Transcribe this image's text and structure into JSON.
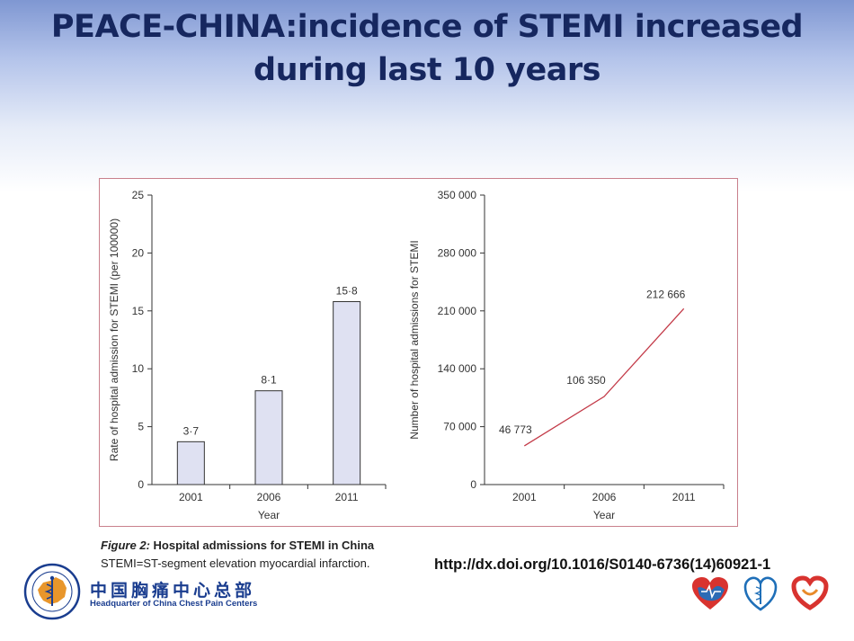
{
  "slide": {
    "title_line1": "PEACE-CHINA:incidence of STEMI increased",
    "title_line2": "during last 10 years"
  },
  "caption": {
    "figure_number": "Figure 2:",
    "figure_title": "Hospital admissions for STEMI in China",
    "footnote": "STEMI=ST-segment elevation myocardial infarction."
  },
  "doi_link": "http://dx.doi.org/10.1016/S0140-6736(14)60921-1",
  "footer": {
    "org_name_cn": "中国胸痛中心总部",
    "org_name_en": "Headquarter of China Chest Pain Centers"
  },
  "colors": {
    "title": "#16275f",
    "bar_fill": "#dfe1f2",
    "line": "#c33a48",
    "frame": "#c9808c",
    "org_blue": "#1a3d8f"
  },
  "icons": [
    "hq-emblem-icon",
    "heart-alliance-logo-icon",
    "chest-pain-logo-icon",
    "heart-foundation-logo-icon"
  ],
  "chart_data": [
    {
      "type": "bar",
      "categories": [
        "2001",
        "2006",
        "2011"
      ],
      "values": [
        3.7,
        8.1,
        15.8
      ],
      "data_labels": [
        "3·7",
        "8·1",
        "15·8"
      ],
      "xlabel": "Year",
      "ylabel": "Rate of hospital admission for STEMI (per 100000)",
      "ylim": [
        0,
        25
      ],
      "yticks": [
        0,
        5,
        10,
        15,
        20,
        25
      ],
      "grid": false
    },
    {
      "type": "line",
      "x": [
        "2001",
        "2006",
        "2011"
      ],
      "values": [
        46773,
        106350,
        212666
      ],
      "data_labels": [
        "46 773",
        "106 350",
        "212 666"
      ],
      "xlabel": "Year",
      "ylabel": "Number of hospital admissions for STEMI",
      "ylim": [
        0,
        350000
      ],
      "yticks": [
        0,
        70000,
        140000,
        210000,
        280000,
        350000
      ],
      "ytick_labels": [
        "0",
        "70 000",
        "140 000",
        "210 000",
        "280 000",
        "350 000"
      ],
      "grid": false
    }
  ]
}
